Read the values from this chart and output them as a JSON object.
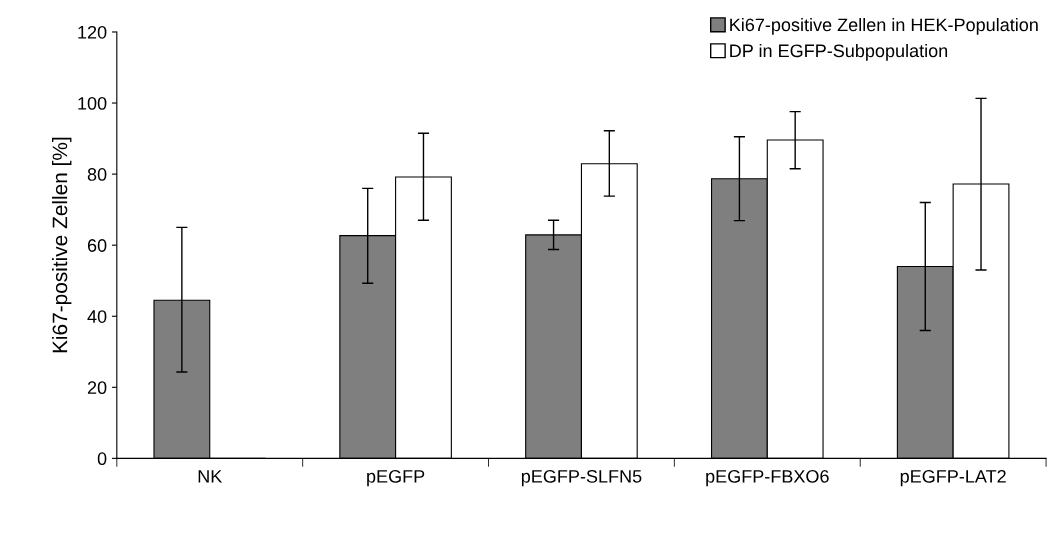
{
  "chart_data": {
    "type": "bar",
    "ylabel": "Ki67-positive Zellen [%]",
    "categories": [
      "NK",
      "pEGFP",
      "pEGFP-SLFN5",
      "pEGFP-FBXO6",
      "pEGFP-LAT2"
    ],
    "series": [
      {
        "name": "Ki67-positive Zellen in HEK-Population",
        "color": "#7f7f7f",
        "values": [
          44.5,
          62.7,
          62.9,
          78.7,
          54
        ],
        "errors": [
          [
            24.3,
            65
          ],
          [
            49.3,
            76
          ],
          [
            58.8,
            67
          ],
          [
            66.9,
            90.5
          ],
          [
            36,
            72
          ]
        ]
      },
      {
        "name": "DP in EGFP-Subpopulation",
        "color": "#ffffff",
        "values": [
          0,
          79.2,
          82.9,
          89.6,
          77.2
        ],
        "errors": [
          null,
          [
            67,
            91.5
          ],
          [
            73.8,
            92.2
          ],
          [
            81.5,
            97.6
          ],
          [
            53,
            101.3
          ]
        ]
      }
    ],
    "ylim": [
      0,
      120
    ],
    "yticks": [
      0,
      20,
      40,
      60,
      80,
      100,
      120
    ],
    "grid": false,
    "legend": "top right"
  }
}
